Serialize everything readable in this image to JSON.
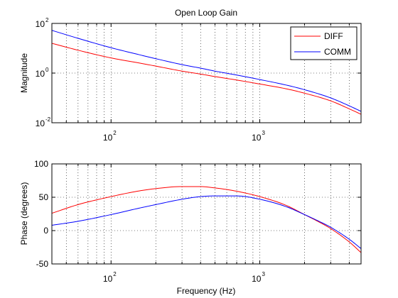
{
  "chart_data": [
    {
      "type": "line",
      "title": "Open Loop Gain",
      "xlabel": "",
      "ylabel": "Magnitude",
      "xscale": "log",
      "yscale": "log",
      "xlim": [
        40,
        4800
      ],
      "ylim": [
        0.01,
        100
      ],
      "grid": true,
      "legend": "top-right",
      "xticks": [
        {
          "base": "10",
          "exp": "2",
          "value": 100
        },
        {
          "base": "10",
          "exp": "3",
          "value": 1000
        }
      ],
      "yticks": [
        {
          "base": "10",
          "exp": "-2",
          "value": 0.01
        },
        {
          "base": "10",
          "exp": "0",
          "value": 1
        },
        {
          "base": "10",
          "exp": "2",
          "value": 100
        }
      ],
      "series": [
        {
          "name": "DIFF",
          "color": "#ff0000",
          "x": [
            40,
            60,
            100,
            150,
            200,
            300,
            400,
            500,
            700,
            1000,
            1500,
            2000,
            3000,
            4000,
            4800
          ],
          "y": [
            15.8,
            8.32,
            4.07,
            2.63,
            1.91,
            1.2,
            0.912,
            0.724,
            0.525,
            0.363,
            0.234,
            0.155,
            0.0759,
            0.0363,
            0.0219
          ]
        },
        {
          "name": "COMM",
          "color": "#0000ff",
          "x": [
            40,
            60,
            100,
            150,
            200,
            300,
            400,
            500,
            700,
            1000,
            1500,
            2000,
            3000,
            4000,
            4800
          ],
          "y": [
            52.5,
            25.1,
            10.5,
            5.75,
            3.8,
            2.19,
            1.58,
            1.2,
            0.832,
            0.55,
            0.331,
            0.214,
            0.1,
            0.0479,
            0.0288
          ]
        }
      ]
    },
    {
      "type": "line",
      "title": "",
      "xlabel": "Frequency (Hz)",
      "ylabel": "Phase (degrees)",
      "xscale": "log",
      "yscale": "linear",
      "xlim": [
        40,
        4800
      ],
      "ylim": [
        -50,
        100
      ],
      "grid": true,
      "legend": "none",
      "xticks": [
        {
          "base": "10",
          "exp": "2",
          "value": 100
        },
        {
          "base": "10",
          "exp": "3",
          "value": 1000
        }
      ],
      "yticks": [
        {
          "label": "-50",
          "value": -50
        },
        {
          "label": "0",
          "value": 0
        },
        {
          "label": "50",
          "value": 50
        },
        {
          "label": "100",
          "value": 100
        }
      ],
      "series": [
        {
          "name": "DIFF",
          "color": "#ff0000",
          "x": [
            40,
            60,
            100,
            150,
            200,
            300,
            400,
            500,
            700,
            1000,
            1500,
            2000,
            2500,
            3000,
            4000,
            4800
          ],
          "y": [
            26,
            39,
            51,
            59,
            63,
            66,
            66,
            64,
            59,
            51,
            38,
            24,
            13,
            3,
            -17,
            -33
          ]
        },
        {
          "name": "COMM",
          "color": "#0000ff",
          "x": [
            40,
            60,
            100,
            150,
            200,
            300,
            400,
            500,
            700,
            1000,
            1500,
            2000,
            2500,
            3000,
            4000,
            4800
          ],
          "y": [
            8,
            14,
            24,
            33,
            39,
            47,
            51,
            52,
            52,
            47,
            36,
            24,
            14,
            5,
            -13,
            -27
          ]
        }
      ]
    }
  ]
}
